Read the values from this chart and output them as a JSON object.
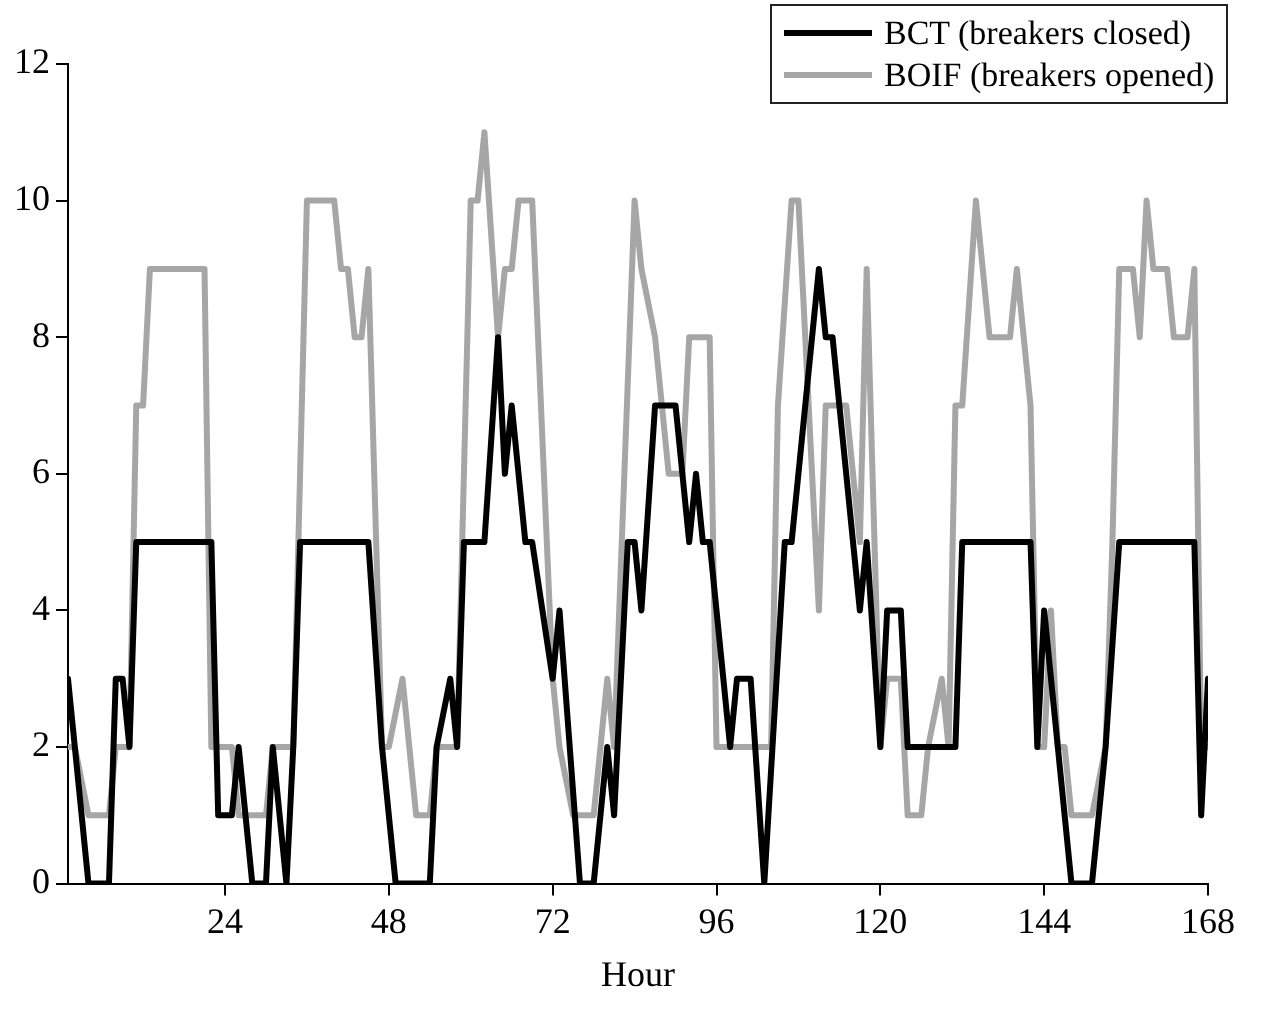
{
  "chart_data": {
    "type": "line",
    "xlabel": "Hour",
    "xlim": [
      1,
      168
    ],
    "xticks": [
      24,
      48,
      72,
      96,
      120,
      144,
      168
    ],
    "ylim": [
      0,
      12
    ],
    "yticks": [
      0,
      2,
      4,
      6,
      8,
      10,
      12
    ],
    "legend": "top right",
    "marker": "none",
    "line_style": "solid",
    "series": [
      {
        "name": "BCT (breakers closed)",
        "color": "#000000",
        "x": [
          1,
          4,
          7,
          8,
          9,
          10,
          11,
          22,
          23,
          25,
          26,
          28,
          30,
          31,
          33,
          34,
          35,
          45,
          47,
          49,
          54,
          55,
          57,
          58,
          59,
          62,
          64,
          65,
          66,
          68,
          69,
          72,
          73,
          76,
          78,
          80,
          81,
          83,
          84,
          85,
          87,
          90,
          92,
          93,
          94,
          95,
          98,
          99,
          101,
          103,
          106,
          107,
          110,
          111,
          112,
          113,
          115,
          117,
          118,
          120,
          121,
          123,
          124,
          131,
          132,
          142,
          143,
          144,
          146,
          148,
          151,
          153,
          155,
          166,
          167,
          168
        ],
        "values": [
          3,
          0,
          0,
          3,
          3,
          2,
          5,
          5,
          1,
          1,
          2,
          0,
          0,
          2,
          0,
          2,
          5,
          5,
          2,
          0,
          0,
          2,
          3,
          2,
          5,
          5,
          8,
          6,
          7,
          5,
          5,
          3,
          4,
          0,
          0,
          2,
          1,
          5,
          5,
          4,
          7,
          7,
          5,
          6,
          5,
          5,
          2,
          3,
          3,
          0,
          5,
          5,
          8,
          9,
          8,
          8,
          6,
          4,
          5,
          2,
          4,
          4,
          2,
          2,
          5,
          5,
          2,
          4,
          2,
          0,
          0,
          2,
          5,
          5,
          1,
          3
        ]
      },
      {
        "name": "BOIF (breakers opened)",
        "color": "#a6a6a6",
        "x": [
          1,
          2,
          4,
          7,
          8,
          10,
          11,
          12,
          13,
          21,
          22,
          25,
          26,
          30,
          31,
          34,
          36,
          40,
          41,
          42,
          43,
          44,
          45,
          47,
          48,
          50,
          52,
          54,
          55,
          58,
          60,
          61,
          62,
          64,
          65,
          66,
          67,
          69,
          72,
          73,
          75,
          78,
          80,
          81,
          84,
          85,
          87,
          89,
          91,
          92,
          95,
          96,
          104,
          105,
          107,
          108,
          110,
          111,
          112,
          115,
          117,
          118,
          120,
          121,
          123,
          124,
          126,
          127,
          129,
          130,
          131,
          132,
          134,
          136,
          139,
          140,
          142,
          143,
          144,
          145,
          146,
          147,
          148,
          151,
          153,
          154,
          155,
          157,
          158,
          159,
          160,
          162,
          163,
          165,
          166,
          167,
          168
        ],
        "values": [
          2,
          2,
          1,
          1,
          2,
          2,
          7,
          7,
          9,
          9,
          2,
          2,
          1,
          1,
          2,
          2,
          10,
          10,
          9,
          9,
          8,
          8,
          9,
          2,
          2,
          3,
          1,
          1,
          2,
          2,
          10,
          10,
          11,
          8,
          9,
          9,
          10,
          10,
          3,
          2,
          1,
          1,
          3,
          2,
          10,
          9,
          8,
          6,
          6,
          8,
          8,
          2,
          2,
          7,
          10,
          10,
          6,
          4,
          7,
          7,
          5,
          9,
          2,
          3,
          3,
          1,
          1,
          2,
          3,
          2,
          7,
          7,
          10,
          8,
          8,
          9,
          7,
          2,
          2,
          4,
          2,
          2,
          1,
          1,
          2,
          5,
          9,
          9,
          8,
          10,
          9,
          9,
          8,
          8,
          9,
          2,
          2
        ]
      }
    ]
  }
}
